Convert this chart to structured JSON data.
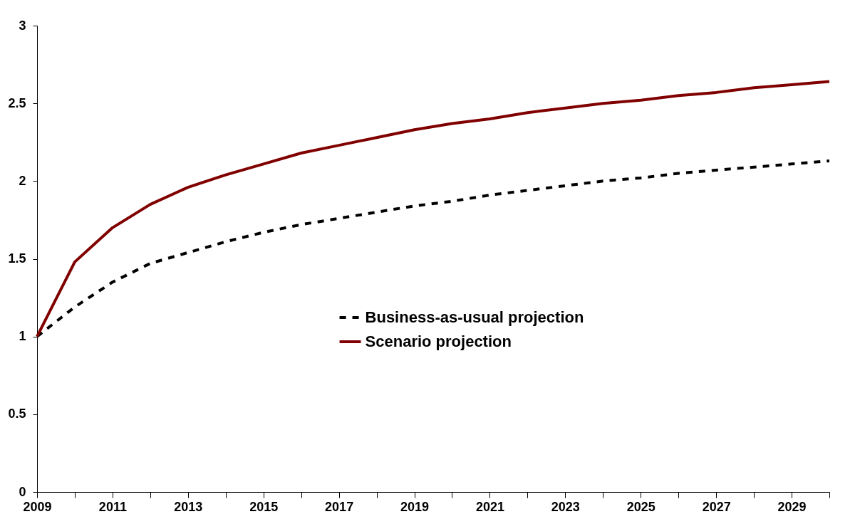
{
  "chart_data": {
    "type": "line",
    "x": [
      2009,
      2010,
      2011,
      2012,
      2013,
      2014,
      2015,
      2016,
      2017,
      2018,
      2019,
      2020,
      2021,
      2022,
      2023,
      2024,
      2025,
      2026,
      2027,
      2028,
      2029,
      2030
    ],
    "series": [
      {
        "name": "Business-as-usual projection",
        "color": "#000000",
        "line_style": "dashed",
        "values": [
          1.0,
          1.19,
          1.35,
          1.47,
          1.54,
          1.61,
          1.67,
          1.72,
          1.76,
          1.8,
          1.84,
          1.87,
          1.91,
          1.94,
          1.97,
          2.0,
          2.02,
          2.05,
          2.07,
          2.09,
          2.11,
          2.13
        ]
      },
      {
        "name": "Scenario projection",
        "color": "#800000",
        "line_style": "solid",
        "values": [
          1.0,
          1.48,
          1.7,
          1.85,
          1.96,
          2.04,
          2.11,
          2.18,
          2.23,
          2.28,
          2.33,
          2.37,
          2.4,
          2.44,
          2.47,
          2.5,
          2.52,
          2.55,
          2.57,
          2.6,
          2.62,
          2.64
        ]
      }
    ],
    "xlim": [
      2009,
      2030
    ],
    "xticks": [
      2009,
      {
        "value": 2010,
        "label": null
      },
      2011,
      {
        "value": 2012,
        "label": null
      },
      2013,
      {
        "value": 2014,
        "label": null
      },
      2015,
      {
        "value": 2016,
        "label": null
      },
      2017,
      {
        "value": 2018,
        "label": null
      },
      2019,
      {
        "value": 2020,
        "label": null
      },
      2021,
      {
        "value": 2022,
        "label": null
      },
      2023,
      {
        "value": 2024,
        "label": null
      },
      2025,
      {
        "value": 2026,
        "label": null
      },
      2027,
      {
        "value": 2028,
        "label": null
      },
      2029,
      {
        "value": 2030,
        "label": null
      }
    ],
    "ylim": [
      0,
      3
    ],
    "yticks": [
      0,
      0.5,
      1,
      1.5,
      2,
      2.5,
      3
    ],
    "grid": false,
    "legend": "center"
  }
}
